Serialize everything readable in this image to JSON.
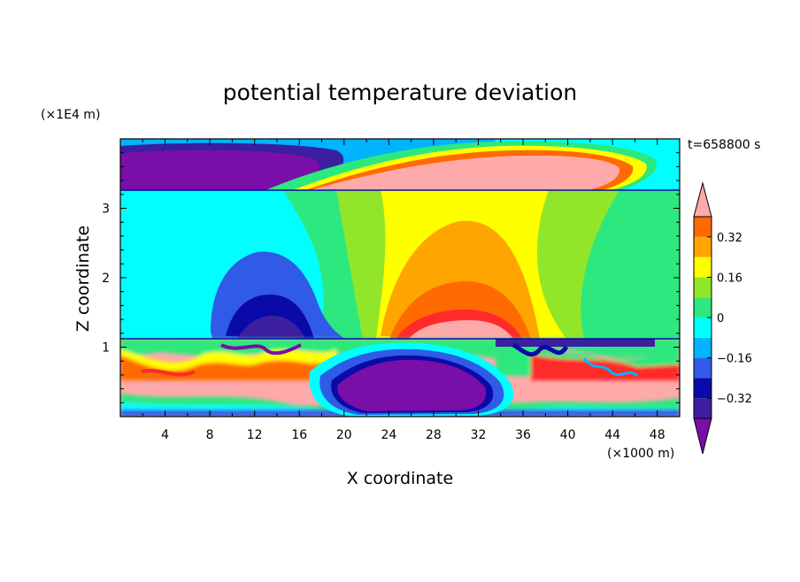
{
  "chart_data": {
    "type": "heatmap",
    "title": "potential temperature deviation",
    "xlabel": "X coordinate",
    "ylabel": "Z coordinate",
    "x_unit": "(×1000 m)",
    "y_unit": "(×1E4 m)",
    "time_label": "t=658800 s",
    "xlim": [
      0,
      50
    ],
    "ylim": [
      0,
      4
    ],
    "x_ticks": [
      4,
      8,
      12,
      16,
      20,
      24,
      28,
      32,
      36,
      40,
      44,
      48
    ],
    "y_ticks": [
      1,
      2,
      3
    ],
    "colorbar": {
      "levels": [
        -0.4,
        -0.32,
        -0.24,
        -0.16,
        -0.08,
        0,
        0.08,
        0.16,
        0.24,
        0.32,
        0.4
      ],
      "labeled_ticks": [
        0.32,
        0.16,
        0,
        -0.16,
        -0.32
      ],
      "tick_labels": [
        "0.32",
        "0.16",
        "0",
        "−0.16",
        "−0.32"
      ],
      "colors": [
        "#7a0ea8",
        "#3b1fa0",
        "#0a0aa8",
        "#2f5be6",
        "#00b4ff",
        "#00ffff",
        "#2de87e",
        "#92e62a",
        "#ffff00",
        "#ffa500",
        "#ff6a00",
        "#ff2b2b",
        "#ffaaaa"
      ],
      "extend": "both"
    },
    "regions": [
      {
        "band": "upper layer (z 3.3–4.0)",
        "value_range": [
          -0.4,
          0.4
        ]
      },
      {
        "band": "middle layer (z 1.1–3.3)",
        "value_range": [
          -0.32,
          0.32
        ]
      },
      {
        "band": "lower layer (z 0–1.1)",
        "value_range": [
          -0.4,
          0.4
        ]
      }
    ],
    "grid": false
  }
}
